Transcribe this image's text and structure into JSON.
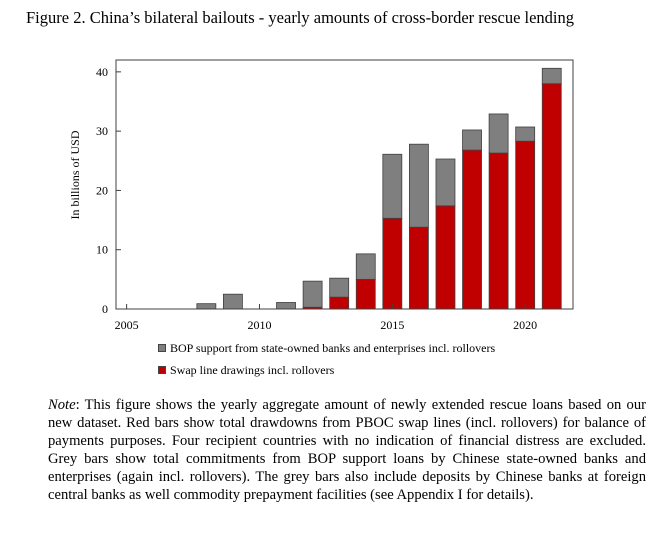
{
  "figure_title": "Figure 2. China’s bilateral bailouts - yearly amounts of cross-border rescue lending",
  "colors": {
    "grey": "#7f7f7f",
    "red": "#c00000",
    "axis": "#404040"
  },
  "chart_data": {
    "type": "bar",
    "stacked": true,
    "ylabel": "In billions of USD",
    "xlabel": "",
    "ylim": [
      0,
      42
    ],
    "xlim": [
      2004.6,
      2021.8
    ],
    "yticks": [
      0,
      10,
      20,
      30,
      40
    ],
    "xticks": [
      2005,
      2010,
      2015,
      2020
    ],
    "x": [
      2005,
      2006,
      2007,
      2008,
      2009,
      2010,
      2011,
      2012,
      2013,
      2014,
      2015,
      2016,
      2017,
      2018,
      2019,
      2020,
      2021
    ],
    "series": [
      {
        "name": "Swap line drawings incl. rollovers",
        "color": "#c00000",
        "values": [
          0,
          0,
          0,
          0,
          0,
          0,
          0,
          0.3,
          2.0,
          5.0,
          15.3,
          13.8,
          17.4,
          26.8,
          26.3,
          28.3,
          38.0
        ]
      },
      {
        "name": "BOP support from state-owned banks and enterprises incl. rollovers",
        "color": "#7f7f7f",
        "values": [
          0,
          0,
          0,
          0.9,
          2.5,
          0,
          1.1,
          4.4,
          3.2,
          4.3,
          10.8,
          14.0,
          7.9,
          3.4,
          6.6,
          2.4,
          2.6
        ]
      }
    ],
    "legend_position": "bottom-left",
    "grid": false
  },
  "legend": [
    {
      "label": "BOP support from state-owned banks and enterprises incl. rollovers",
      "color": "#7f7f7f"
    },
    {
      "label": "Swap line drawings incl. rollovers",
      "color": "#c00000"
    }
  ],
  "note": {
    "lead": "Note",
    "text": ": This figure shows the yearly aggregate amount of newly extended rescue loans based on our new dataset. Red bars show total drawdowns from PBOC swap lines (incl. rollovers) for balance of payments purposes. Four recipient countries with no indication of financial distress are excluded. Grey bars show total commitments from BOP support loans by Chinese state-owned banks and enterprises (again incl. rollovers). The grey bars also include deposits by Chinese banks at foreign central banks as well commodity prepayment facilities (see Appendix I for details)."
  }
}
